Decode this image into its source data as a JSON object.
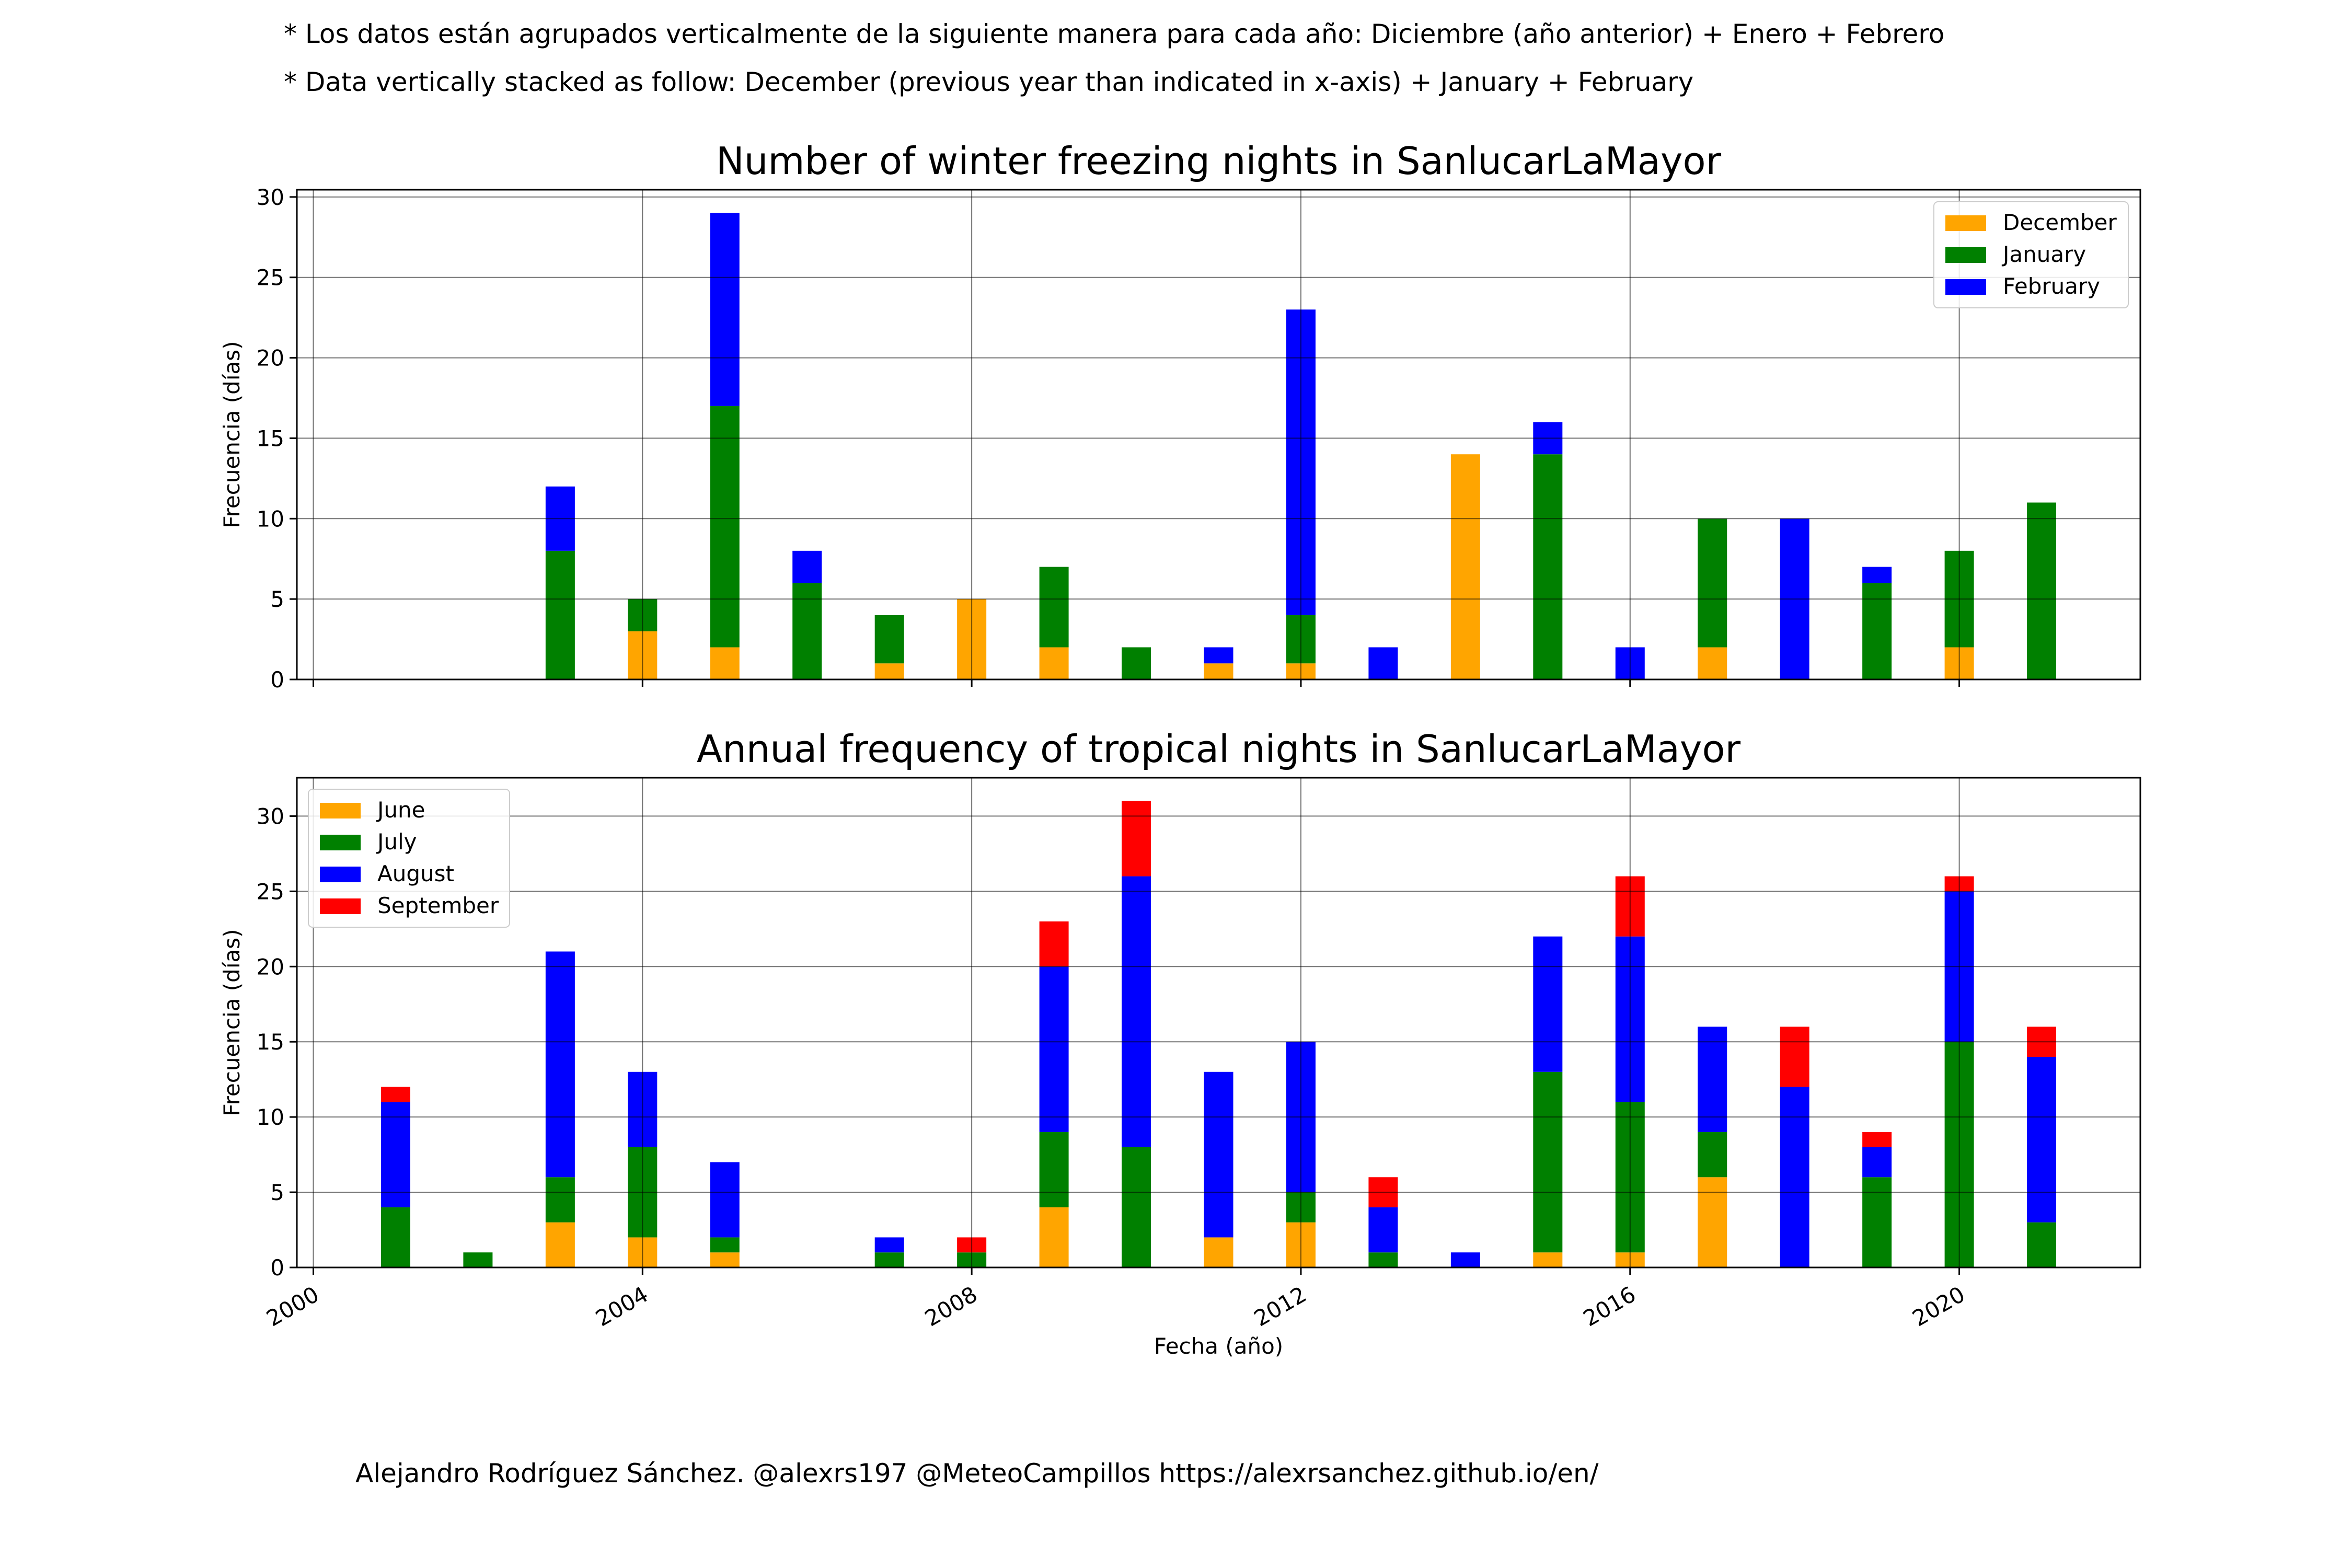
{
  "notes": {
    "spanish": "* Los datos están agrupados verticalmente de la siguiente manera para cada año: Diciembre (año anterior) + Enero  + Febrero",
    "english": "* Data vertically stacked as follow: December (previous year than indicated in x-axis) + January  + February"
  },
  "credit": "Alejandro Rodríguez Sánchez. @alexrs197 @MeteoCampillos   https://alexrsanchez.github.io/en/",
  "chart_data": [
    {
      "type": "bar",
      "stacked": true,
      "title": "Number of winter freezing nights in SanlucarLaMayor",
      "ylabel": "Frecuencia (días)",
      "xlabel": "",
      "ylim": [
        0,
        30.45
      ],
      "xlim": [
        1999.8,
        2022.2
      ],
      "yticks": [
        0,
        5,
        10,
        15,
        20,
        25,
        30
      ],
      "xticks": [
        2000,
        2004,
        2008,
        2012,
        2016,
        2020
      ],
      "show_xtick_labels": false,
      "grid": true,
      "legend_position": "top-right",
      "x": [
        2003,
        2004,
        2005,
        2006,
        2007,
        2008,
        2009,
        2010,
        2011,
        2012,
        2013,
        2014,
        2015,
        2016,
        2017,
        2018,
        2019,
        2020,
        2021
      ],
      "series": [
        {
          "name": "December",
          "color": "#FFA500",
          "values": [
            0,
            3,
            2,
            0,
            1,
            5,
            2,
            0,
            1,
            1,
            0,
            14,
            0,
            0,
            2,
            0,
            0,
            2,
            0
          ]
        },
        {
          "name": "January",
          "color": "#008000",
          "values": [
            8,
            2,
            15,
            6,
            3,
            0,
            5,
            2,
            0,
            3,
            0,
            0,
            14,
            0,
            8,
            0,
            6,
            6,
            11
          ]
        },
        {
          "name": "February",
          "color": "#0000FF",
          "values": [
            4,
            0,
            12,
            2,
            0,
            0,
            0,
            0,
            1,
            19,
            2,
            0,
            2,
            2,
            0,
            10,
            1,
            0,
            0
          ]
        }
      ]
    },
    {
      "type": "bar",
      "stacked": true,
      "title": "Annual frequency of tropical nights in SanlucarLaMayor",
      "ylabel": "Frecuencia (días)",
      "xlabel": "Fecha (año)",
      "ylim": [
        0,
        32.55
      ],
      "xlim": [
        1999.8,
        2022.2
      ],
      "yticks": [
        0,
        5,
        10,
        15,
        20,
        25,
        30
      ],
      "xticks": [
        2000,
        2004,
        2008,
        2012,
        2016,
        2020
      ],
      "show_xtick_labels": true,
      "grid": true,
      "legend_position": "top-left",
      "x": [
        2001,
        2002,
        2003,
        2004,
        2005,
        2006,
        2007,
        2008,
        2009,
        2010,
        2011,
        2012,
        2013,
        2014,
        2015,
        2016,
        2017,
        2018,
        2019,
        2020,
        2021
      ],
      "series": [
        {
          "name": "June",
          "color": "#FFA500",
          "values": [
            0,
            0,
            3,
            2,
            1,
            0,
            0,
            0,
            4,
            0,
            2,
            3,
            0,
            0,
            1,
            1,
            6,
            0,
            0,
            0,
            0
          ]
        },
        {
          "name": "July",
          "color": "#008000",
          "values": [
            4,
            1,
            3,
            6,
            1,
            0,
            1,
            1,
            5,
            8,
            0,
            2,
            1,
            0,
            12,
            10,
            3,
            0,
            6,
            15,
            3
          ]
        },
        {
          "name": "August",
          "color": "#0000FF",
          "values": [
            7,
            0,
            15,
            5,
            5,
            0,
            1,
            0,
            11,
            18,
            11,
            10,
            3,
            1,
            9,
            11,
            7,
            12,
            2,
            10,
            11
          ]
        },
        {
          "name": "September",
          "color": "#FF0000",
          "values": [
            1,
            0,
            0,
            0,
            0,
            0,
            0,
            1,
            3,
            5,
            0,
            0,
            2,
            0,
            0,
            4,
            0,
            4,
            1,
            1,
            2
          ]
        }
      ]
    }
  ]
}
